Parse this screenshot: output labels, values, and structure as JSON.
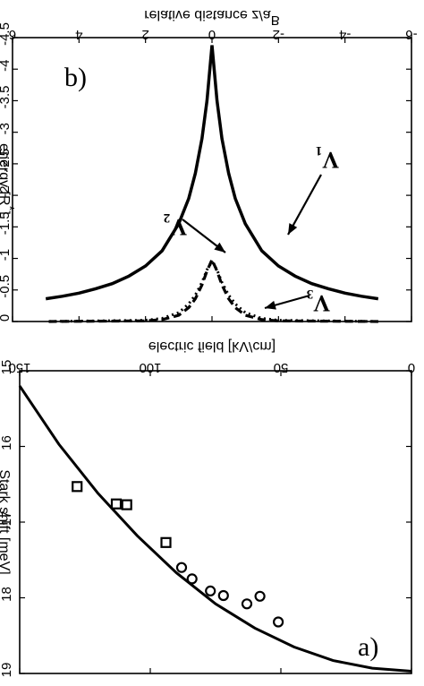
{
  "chart_data": [
    {
      "panel": "b)",
      "type": "line",
      "xlabel_top": "relative distance  z/a",
      "xlabel_top_sup": "B",
      "ylabel": "energy  [R",
      "ylabel_sup": "*",
      "ylabel_end": "]",
      "xlim": [
        -6,
        6
      ],
      "ylim": [
        -4.5,
        0
      ],
      "x_ticks": [
        -6,
        -4,
        -2,
        0,
        2,
        4,
        6
      ],
      "x_tick_labels": [
        "-6",
        "-4",
        "-2",
        "0",
        "2",
        "4",
        "6"
      ],
      "y_ticks": [
        0,
        -0.5,
        -1,
        -1.5,
        -2,
        -2.5,
        -3,
        -3.5,
        -4,
        -4.5
      ],
      "y_tick_labels": [
        "0",
        "-0.5",
        "-1",
        "-1.5",
        "-2",
        "-2.5",
        "-3",
        "-3.5",
        "-4",
        "-4.5"
      ],
      "series": [
        {
          "name": "V1",
          "style": "solid",
          "x": [
            -5,
            -4.5,
            -4,
            -3.5,
            -3,
            -2.5,
            -2,
            -1.5,
            -1,
            -0.7,
            -0.5,
            -0.3,
            -0.15,
            0,
            0.15,
            0.3,
            0.5,
            0.7,
            1,
            1.5,
            2,
            2.5,
            3,
            3.5,
            4,
            4.5,
            5
          ],
          "y": [
            -0.36,
            -0.4,
            -0.45,
            -0.52,
            -0.6,
            -0.72,
            -0.88,
            -1.12,
            -1.55,
            -1.95,
            -2.35,
            -2.9,
            -3.5,
            -4.38,
            -3.5,
            -2.9,
            -2.35,
            -1.95,
            -1.55,
            -1.12,
            -0.88,
            -0.72,
            -0.6,
            -0.52,
            -0.45,
            -0.4,
            -0.36
          ]
        },
        {
          "name": "V2",
          "style": "dashed",
          "x": [
            -5,
            -2,
            -1.5,
            -1,
            -0.7,
            -0.5,
            -0.3,
            -0.15,
            0,
            0.15,
            0.3,
            0.5,
            0.7,
            1,
            1.5,
            2,
            5
          ],
          "y": [
            0,
            -0.01,
            -0.03,
            -0.1,
            -0.22,
            -0.36,
            -0.58,
            -0.8,
            -0.98,
            -0.8,
            -0.58,
            -0.36,
            -0.22,
            -0.1,
            -0.03,
            -0.01,
            0
          ]
        },
        {
          "name": "V3",
          "style": "dotted",
          "x": [
            -5,
            -2,
            -1.5,
            -1,
            -0.7,
            -0.5,
            -0.3,
            -0.15,
            0,
            0.15,
            0.3,
            0.5,
            0.7,
            1,
            1.5,
            2,
            5
          ],
          "y": [
            0,
            -0.02,
            -0.05,
            -0.14,
            -0.28,
            -0.42,
            -0.62,
            -0.82,
            -0.95,
            -0.82,
            -0.62,
            -0.42,
            -0.28,
            -0.14,
            -0.05,
            -0.02,
            0
          ]
        }
      ],
      "annotations": [
        {
          "text": "V",
          "sub": "1",
          "target_series": "V1"
        },
        {
          "text": "V",
          "sub": "2",
          "target_series": "V2"
        },
        {
          "text": "V",
          "sub": "3",
          "target_series": "V3"
        }
      ]
    },
    {
      "panel": "a)",
      "type": "scatter",
      "xlabel": "electric field  [kV/cm]",
      "ylabel": "Stark shift [meV]",
      "xlim": [
        0,
        150
      ],
      "ylim": [
        15,
        19
      ],
      "x_ticks": [
        0,
        50,
        100,
        150
      ],
      "x_tick_labels": [
        "0",
        "50",
        "100",
        "150"
      ],
      "y_ticks": [
        15,
        16,
        17,
        18,
        19
      ],
      "y_tick_labels": [
        "15",
        "16",
        "17",
        "18",
        "19"
      ],
      "series": [
        {
          "name": "theory",
          "style": "line",
          "x": [
            0,
            15,
            30,
            45,
            60,
            75,
            90,
            105,
            120,
            135,
            150
          ],
          "y": [
            18.97,
            18.93,
            18.83,
            18.65,
            18.4,
            18.08,
            17.67,
            17.18,
            16.62,
            15.97,
            15.2
          ]
        },
        {
          "name": "circles",
          "style": "circle",
          "x": [
            51,
            58,
            63,
            72,
            77,
            84,
            88
          ],
          "y": [
            18.32,
            17.98,
            18.08,
            17.97,
            17.91,
            17.75,
            17.6
          ]
        },
        {
          "name": "squares",
          "style": "square",
          "x": [
            94,
            113,
            109,
            128
          ],
          "y": [
            17.27,
            16.76,
            16.77,
            16.53
          ]
        }
      ]
    }
  ]
}
